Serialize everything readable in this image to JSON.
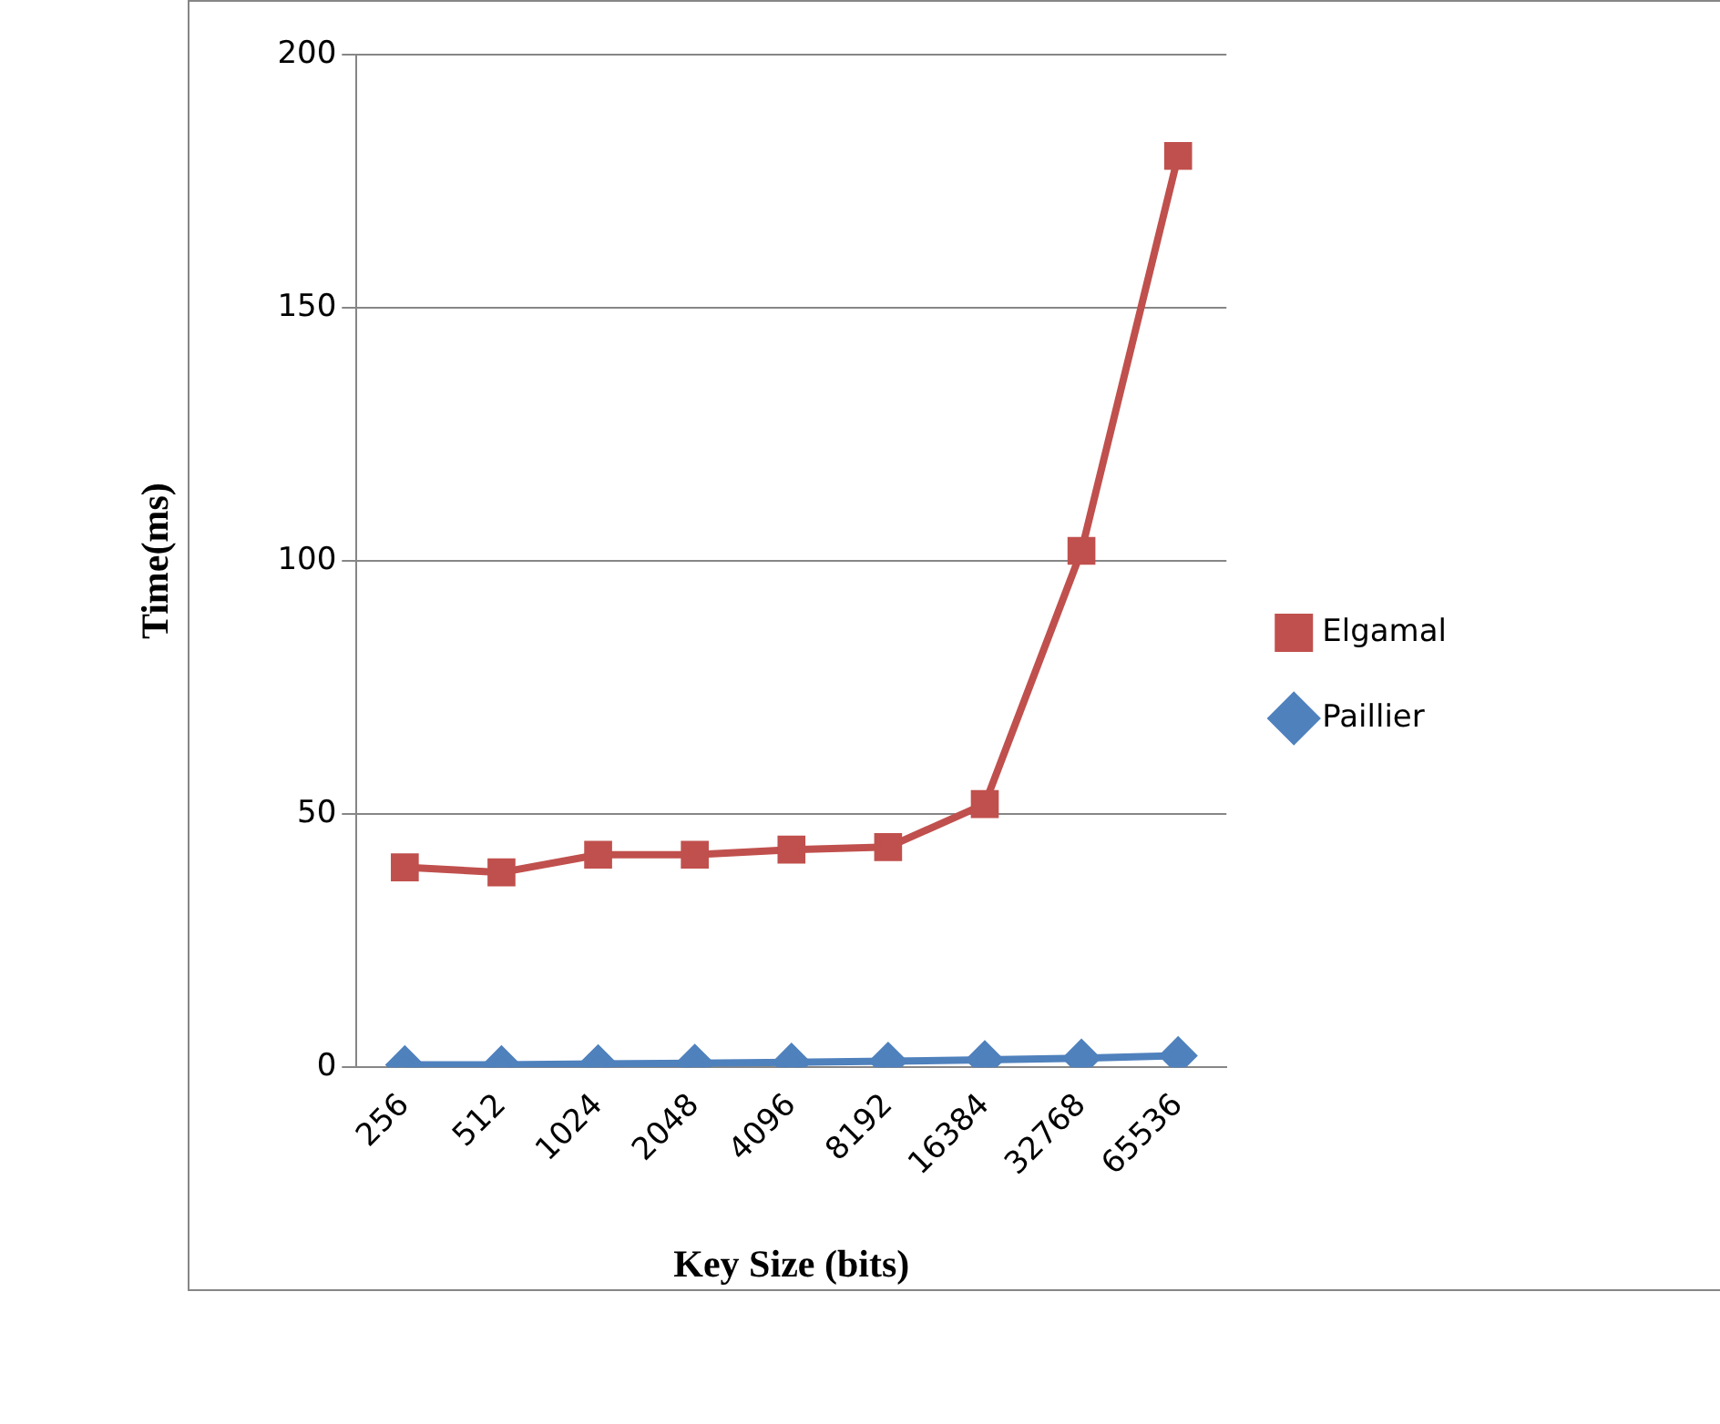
{
  "chart_data": {
    "type": "line",
    "xlabel": "Key Size (bits)",
    "ylabel": "Time(ms)",
    "categories": [
      "256",
      "512",
      "1024",
      "2048",
      "4096",
      "8192",
      "16384",
      "32768",
      "65536"
    ],
    "series": [
      {
        "name": "Elgamal",
        "color": "#c0504d",
        "marker": "square",
        "values": [
          39.5,
          38.5,
          42,
          42,
          43,
          43.5,
          52,
          102,
          180
        ]
      },
      {
        "name": "Paillier",
        "color": "#4f81bd",
        "marker": "diamond",
        "values": [
          0.5,
          0.5,
          0.7,
          0.8,
          1,
          1.2,
          1.5,
          1.8,
          2.3
        ]
      }
    ],
    "ylim": [
      0,
      200
    ],
    "yticks": [
      0,
      50,
      100,
      150,
      200
    ],
    "grid": "y",
    "legend": "right"
  }
}
